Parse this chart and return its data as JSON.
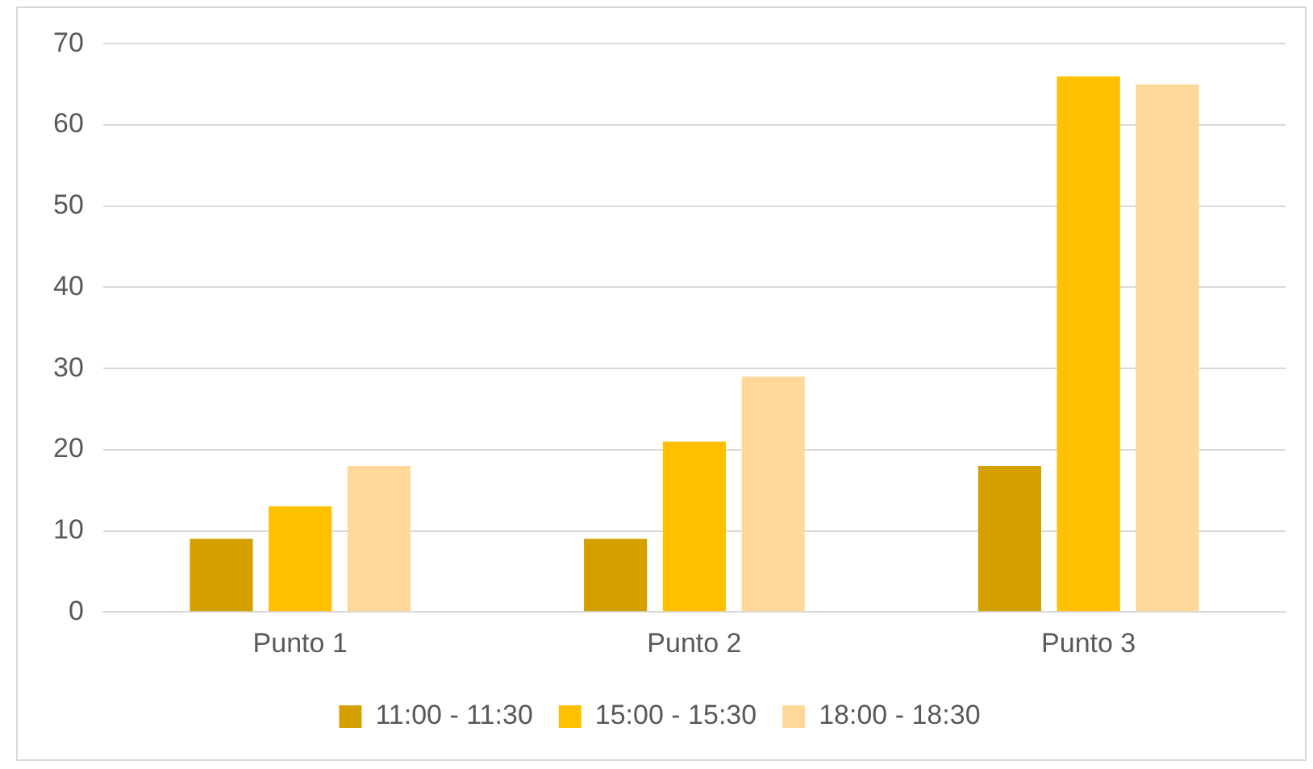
{
  "chart_data": {
    "type": "bar",
    "categories": [
      "Punto 1",
      "Punto 2",
      "Punto 3"
    ],
    "series": [
      {
        "name": "11:00 - 11:30",
        "color": "#d4a000",
        "values": [
          9,
          9,
          18
        ]
      },
      {
        "name": "15:00 - 15:30",
        "color": "#ffc000",
        "values": [
          13,
          21,
          66
        ]
      },
      {
        "name": "18:00 - 18:30",
        "color": "#ffd899",
        "values": [
          18,
          29,
          65
        ]
      }
    ],
    "ylim": [
      0,
      70
    ],
    "yticks": [
      0,
      10,
      20,
      30,
      40,
      50,
      60,
      70
    ],
    "grid": "y",
    "legend": "bottom"
  }
}
